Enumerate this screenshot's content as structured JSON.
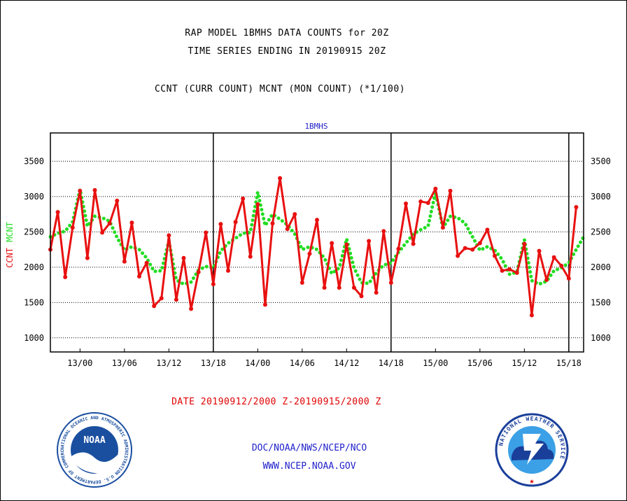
{
  "header": {
    "line1": "RAP MODEL 1BMHS DATA COUNTS for 20Z",
    "line2": "TIME SERIES ENDING IN 20190915 20Z",
    "line3": "CCNT (CURR COUNT) MCNT (MON COUNT) (*1/100)"
  },
  "chart_data": {
    "type": "line",
    "title": "1BMHS",
    "ylabel": "CCNT  MCNT",
    "ylabel_parts": [
      "CCNT",
      "MCNT"
    ],
    "xlabel": "DATE 20190912/2000 Z-20190915/2000 Z",
    "ylim": [
      800,
      3900
    ],
    "yticks": [
      1000,
      1500,
      2000,
      2500,
      3000,
      3500
    ],
    "xlim": [
      0,
      72
    ],
    "xticks": [
      {
        "x": 4,
        "label": "13/00"
      },
      {
        "x": 10,
        "label": "13/06"
      },
      {
        "x": 16,
        "label": "13/12"
      },
      {
        "x": 22,
        "label": "13/18"
      },
      {
        "x": 28,
        "label": "14/00"
      },
      {
        "x": 34,
        "label": "14/06"
      },
      {
        "x": 40,
        "label": "14/12"
      },
      {
        "x": 46,
        "label": "14/18"
      },
      {
        "x": 52,
        "label": "15/00"
      },
      {
        "x": 58,
        "label": "15/06"
      },
      {
        "x": 64,
        "label": "15/12"
      },
      {
        "x": 70,
        "label": "15/18"
      }
    ],
    "vlines": [
      22,
      46,
      70
    ],
    "grid": true,
    "series": [
      {
        "name": "CCNT",
        "color": "#e81010",
        "style": "solid",
        "values": [
          2250,
          2780,
          1860,
          2560,
          3080,
          2130,
          3090,
          2490,
          2620,
          2940,
          2080,
          2630,
          1870,
          2060,
          1450,
          1560,
          2450,
          1540,
          2130,
          1410,
          1930,
          2490,
          1760,
          2610,
          1950,
          2640,
          2970,
          2150,
          2890,
          1470,
          2620,
          3260,
          2540,
          2750,
          1780,
          2190,
          2670,
          1710,
          2340,
          1710,
          2320,
          1710,
          1590,
          2370,
          1640,
          2510,
          1780,
          2260,
          2900,
          2330,
          2930,
          2910,
          3110,
          2560,
          3080,
          2160,
          2270,
          2250,
          2340,
          2530,
          2160,
          1950,
          1970,
          1920,
          2330,
          1320,
          2230,
          1820,
          2140,
          2020,
          1840,
          2850
        ]
      },
      {
        "name": "MCNT",
        "color": "#22dd22",
        "style": "dotted",
        "values": [
          2430,
          2480,
          2510,
          2640,
          3100,
          2580,
          2720,
          2700,
          2650,
          2420,
          2240,
          2290,
          2250,
          2130,
          1940,
          1950,
          2370,
          1820,
          1760,
          1790,
          1960,
          2010,
          1990,
          2230,
          2340,
          2410,
          2480,
          2490,
          3060,
          2590,
          2750,
          2680,
          2600,
          2470,
          2250,
          2290,
          2250,
          2130,
          1910,
          1990,
          2400,
          1990,
          1780,
          1770,
          1920,
          2030,
          2060,
          2210,
          2340,
          2470,
          2530,
          2580,
          3060,
          2560,
          2720,
          2700,
          2620,
          2430,
          2240,
          2290,
          2240,
          2110,
          1900,
          1930,
          2390,
          1810,
          1760,
          1800,
          1950,
          1990,
          2060,
          2250,
          2430
        ]
      }
    ]
  },
  "footer": {
    "line1": "DOC/NOAA/NWS/NCEP/NCO",
    "line2": "WWW.NCEP.NOAA.GOV"
  },
  "logos": {
    "noaa": {
      "center_text": "NOAA",
      "ring_text": "NATIONAL OCEANIC AND ATMOSPHERIC ADMINISTRATION  U.S. DEPARTMENT OF COMMERCE",
      "color": "#1a4fa0"
    },
    "nws": {
      "ring_text": "NATIONAL WEATHER SERVICE",
      "color": "#1a3f9a"
    }
  }
}
